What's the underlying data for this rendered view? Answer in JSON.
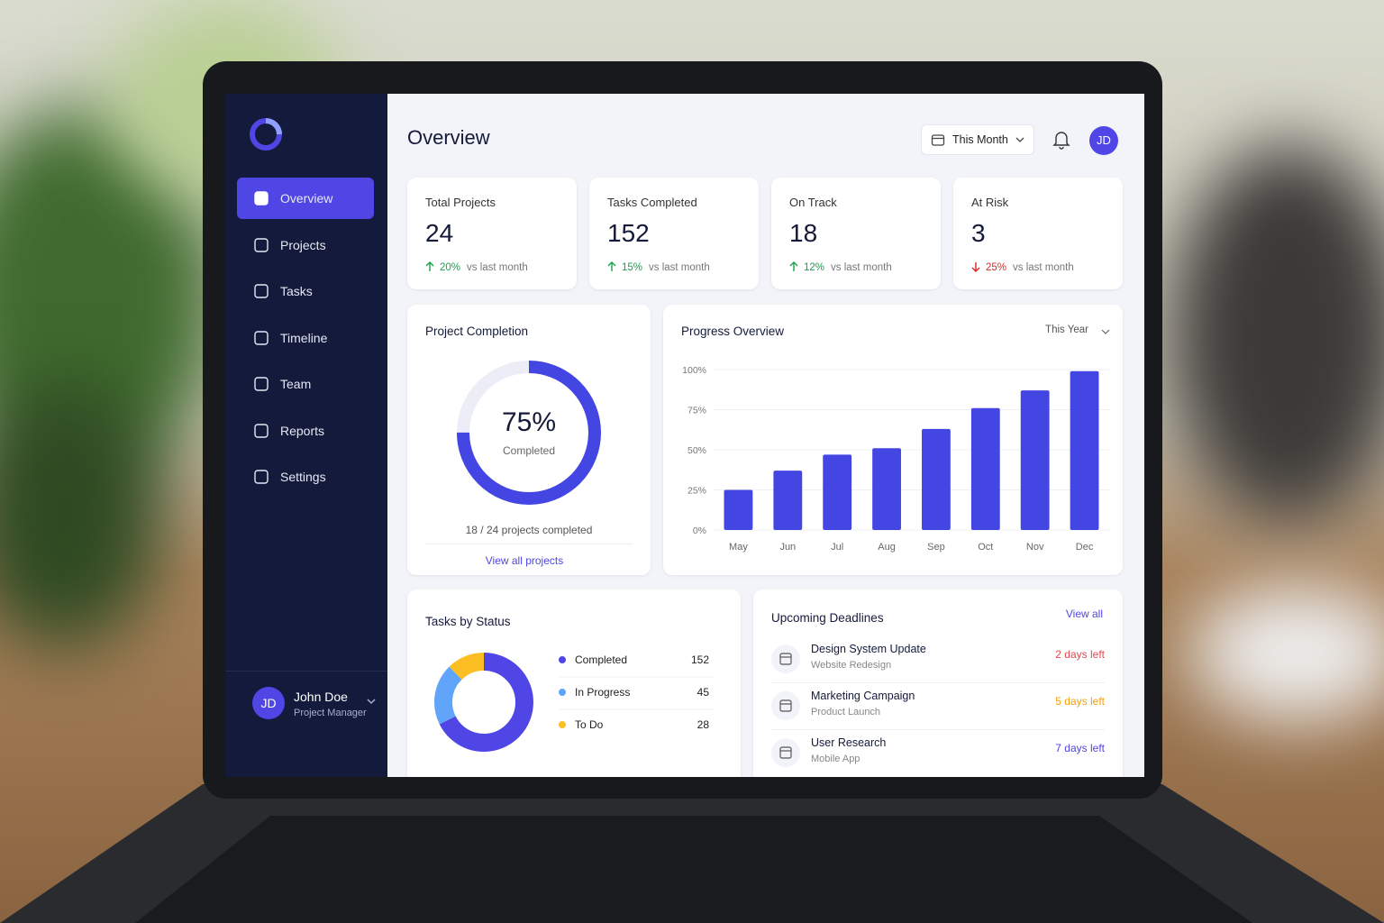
{
  "sidebar": {
    "nav": [
      "Overview",
      "Projects",
      "Tasks",
      "Timeline",
      "Team",
      "Reports",
      "Settings"
    ],
    "active": 0,
    "user": {
      "initials": "JD",
      "name": "John Doe",
      "role": "Project Manager"
    }
  },
  "header": {
    "title": "Overview",
    "period": "This Month",
    "avatar": "JD"
  },
  "stats": [
    {
      "label": "Total Projects",
      "value": 24,
      "change": "20%",
      "note": "vs last month",
      "trend": "up"
    },
    {
      "label": "Tasks Completed",
      "value": 152,
      "change": "15%",
      "note": "vs last month",
      "trend": "up"
    },
    {
      "label": "On Track",
      "value": 18,
      "change": "12%",
      "note": "vs last month",
      "trend": "up"
    },
    {
      "label": "At Risk",
      "value": 3,
      "change": "25%",
      "note": "vs last month",
      "trend": "down"
    }
  ],
  "project_completion": {
    "title": "Project Completion",
    "value": 75,
    "value_label": "75%",
    "caption": "Completed",
    "summary": "18 / 24 projects completed",
    "link": "View all projects",
    "color": "#4446e4"
  },
  "progress_overview": {
    "type": "bar",
    "title": "Progress Overview",
    "period": "This Year",
    "categories": [
      "May",
      "Jun",
      "Jul",
      "Aug",
      "Sep",
      "Oct",
      "Nov",
      "Dec"
    ],
    "values": [
      25,
      37,
      47,
      51,
      63,
      76,
      87,
      99
    ],
    "color": "#4446e4",
    "ylim": [
      0,
      100
    ],
    "yticks": [
      {
        "value": 0,
        "label": "0%"
      },
      {
        "value": 25,
        "label": "25%"
      },
      {
        "value": 50,
        "label": "50%"
      },
      {
        "value": 75,
        "label": "75%"
      },
      {
        "value": 100,
        "label": "100%"
      }
    ],
    "grid": true
  },
  "tasks_by_status": {
    "title": "Tasks by Status",
    "items": [
      {
        "name": "Completed",
        "value": 152,
        "color": "#4f46e5"
      },
      {
        "name": "In Progress",
        "value": 45,
        "color": "#60a5fa"
      },
      {
        "name": "To Do",
        "value": 28,
        "color": "#fbbf24"
      }
    ]
  },
  "deadlines": {
    "title": "Upcoming Deadlines",
    "link": "View all",
    "items": [
      {
        "name": "Design System Update",
        "project": "Website Redesign",
        "due": "2 days left",
        "color": "#e5484d"
      },
      {
        "name": "Marketing Campaign",
        "project": "Product Launch",
        "due": "5 days left",
        "color": "#f59e0b"
      },
      {
        "name": "User Research",
        "project": "Mobile App",
        "due": "7 days left",
        "color": "#4f46e5"
      }
    ]
  }
}
